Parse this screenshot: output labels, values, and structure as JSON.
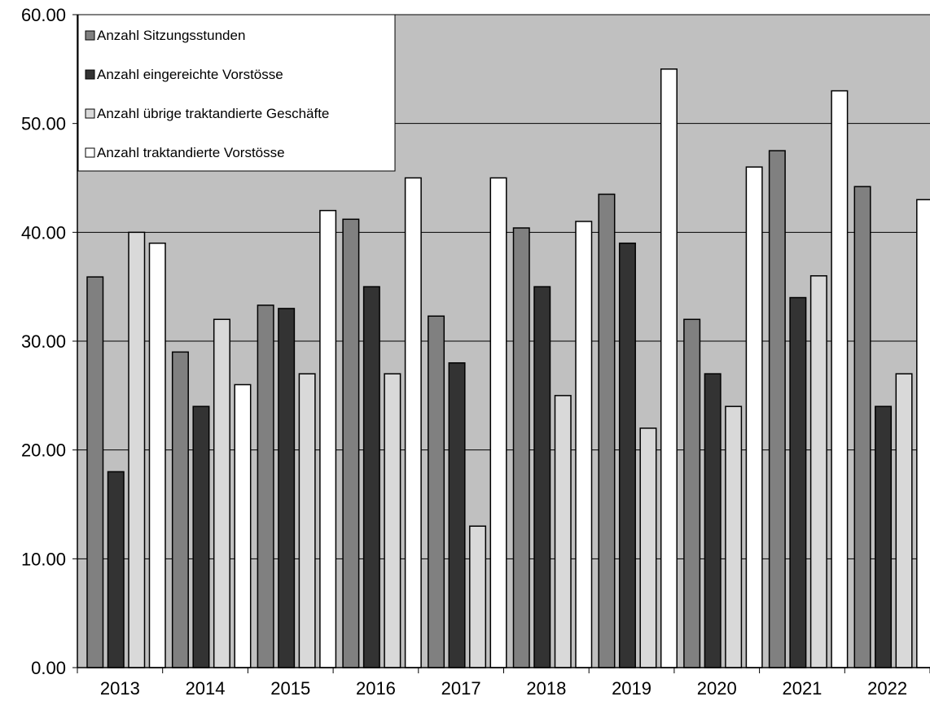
{
  "chart_data": {
    "type": "bar",
    "categories": [
      "2013",
      "2014",
      "2015",
      "2016",
      "2017",
      "2018",
      "2019",
      "2020",
      "2021",
      "2022"
    ],
    "series": [
      {
        "name": "Anzahl Sitzungsstunden",
        "color": "#808080",
        "values": [
          35.9,
          29.0,
          33.3,
          41.2,
          32.3,
          40.4,
          43.5,
          32.0,
          47.5,
          44.2
        ]
      },
      {
        "name": "Anzahl eingereichte Vorstösse",
        "color": "#333333",
        "values": [
          18,
          24,
          33,
          35,
          28,
          35,
          39,
          27,
          34,
          24
        ]
      },
      {
        "name": "Anzahl übrige traktandierte Geschäfte",
        "color": "#d9d9d9",
        "values": [
          40,
          32,
          27,
          27,
          13,
          25,
          22,
          24,
          36,
          27
        ]
      },
      {
        "name": "Anzahl traktandierte Vorstösse",
        "color": "#ffffff",
        "values": [
          39,
          26,
          42,
          45,
          45,
          41,
          55,
          46,
          53,
          43
        ]
      }
    ],
    "y_ticks": [
      "0.00",
      "10.00",
      "20.00",
      "30.00",
      "40.00",
      "50.00",
      "60.00"
    ],
    "ylim": [
      0,
      60
    ],
    "grid": true,
    "plot_background": "#c0c0c0",
    "legend_position": "top-left",
    "title": "",
    "xlabel": "",
    "ylabel": ""
  }
}
